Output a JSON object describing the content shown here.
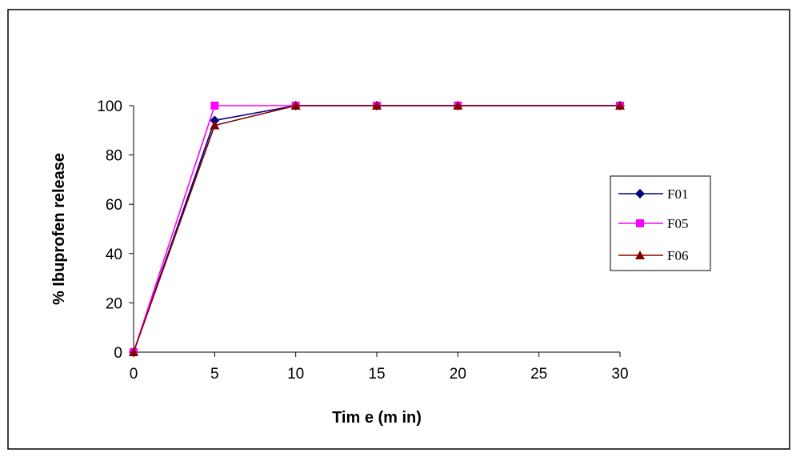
{
  "chart_data": {
    "type": "line",
    "title": "",
    "xlabel": "Tim e (m in)",
    "ylabel": "% Ibuprofen release",
    "x": [
      0,
      5,
      10,
      15,
      20,
      30
    ],
    "x_ticks": [
      0,
      5,
      10,
      15,
      20,
      25,
      30
    ],
    "y_ticks": [
      0,
      20,
      40,
      60,
      80,
      100
    ],
    "xlim": [
      0,
      30
    ],
    "ylim": [
      0,
      100
    ],
    "grid": false,
    "legend_position": "right",
    "series": [
      {
        "name": "F01",
        "values": [
          0,
          94,
          100,
          100,
          100,
          100
        ],
        "color": "#000080",
        "marker": "diamond"
      },
      {
        "name": "F05",
        "values": [
          0,
          100,
          100,
          100,
          100,
          100
        ],
        "color": "#ff00ff",
        "marker": "square"
      },
      {
        "name": "F06",
        "values": [
          0,
          92,
          100,
          100,
          100,
          100
        ],
        "color": "#800000",
        "marker": "triangle"
      }
    ]
  }
}
